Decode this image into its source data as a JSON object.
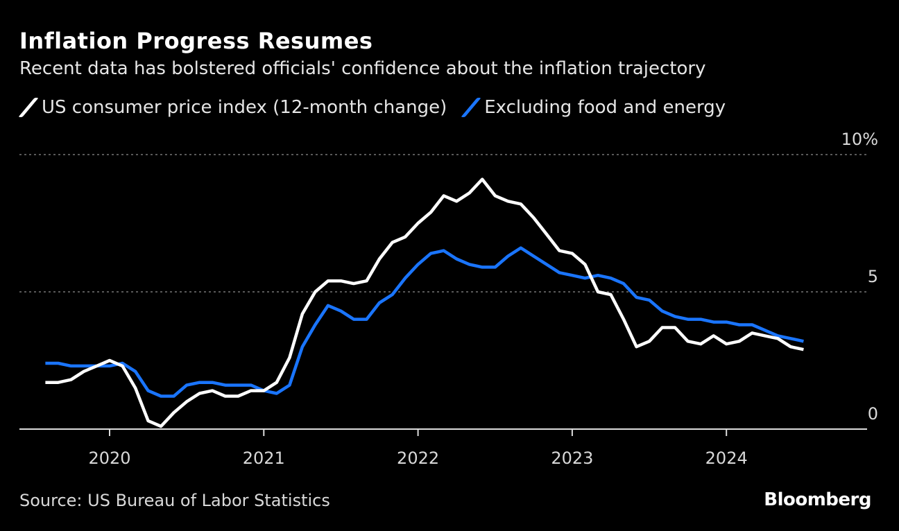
{
  "chart_data": {
    "type": "line",
    "title": "Inflation Progress Resumes",
    "subtitle": "Recent data has bolstered officials' confidence about the inflation trajectory",
    "x_start": "2019-08",
    "x_end": "2024-07",
    "x_frequency": "monthly",
    "x_tick_labels": [
      "2020",
      "2021",
      "2022",
      "2023",
      "2024"
    ],
    "y_tick_labels": [
      "0",
      "5",
      "10%"
    ],
    "y_ticks": [
      0,
      5,
      10
    ],
    "ylim": [
      0,
      10
    ],
    "grid": "horizontal dotted",
    "legend_position": "top",
    "series": [
      {
        "name": "US consumer price index (12-month change)",
        "color": "#ffffff",
        "values": [
          1.7,
          1.7,
          1.8,
          2.1,
          2.3,
          2.5,
          2.3,
          1.5,
          0.3,
          0.1,
          0.6,
          1.0,
          1.3,
          1.4,
          1.2,
          1.2,
          1.4,
          1.4,
          1.7,
          2.6,
          4.2,
          5.0,
          5.4,
          5.4,
          5.3,
          5.4,
          6.2,
          6.8,
          7.0,
          7.5,
          7.9,
          8.5,
          8.3,
          8.6,
          9.1,
          8.5,
          8.3,
          8.2,
          7.7,
          7.1,
          6.5,
          6.4,
          6.0,
          5.0,
          4.9,
          4.0,
          3.0,
          3.2,
          3.7,
          3.7,
          3.2,
          3.1,
          3.4,
          3.1,
          3.2,
          3.5,
          3.4,
          3.3,
          3.0,
          2.9
        ]
      },
      {
        "name": "Excluding food and energy",
        "color": "#1a75ff",
        "values": [
          2.4,
          2.4,
          2.3,
          2.3,
          2.3,
          2.3,
          2.4,
          2.1,
          1.4,
          1.2,
          1.2,
          1.6,
          1.7,
          1.7,
          1.6,
          1.6,
          1.6,
          1.4,
          1.3,
          1.6,
          3.0,
          3.8,
          4.5,
          4.3,
          4.0,
          4.0,
          4.6,
          4.9,
          5.5,
          6.0,
          6.4,
          6.5,
          6.2,
          6.0,
          5.9,
          5.9,
          6.3,
          6.6,
          6.3,
          6.0,
          5.7,
          5.6,
          5.5,
          5.6,
          5.5,
          5.3,
          4.8,
          4.7,
          4.3,
          4.1,
          4.0,
          4.0,
          3.9,
          3.9,
          3.8,
          3.8,
          3.6,
          3.4,
          3.3,
          3.2
        ]
      }
    ],
    "source": "Source: US Bureau of Labor Statistics"
  },
  "logo": "Bloomberg"
}
